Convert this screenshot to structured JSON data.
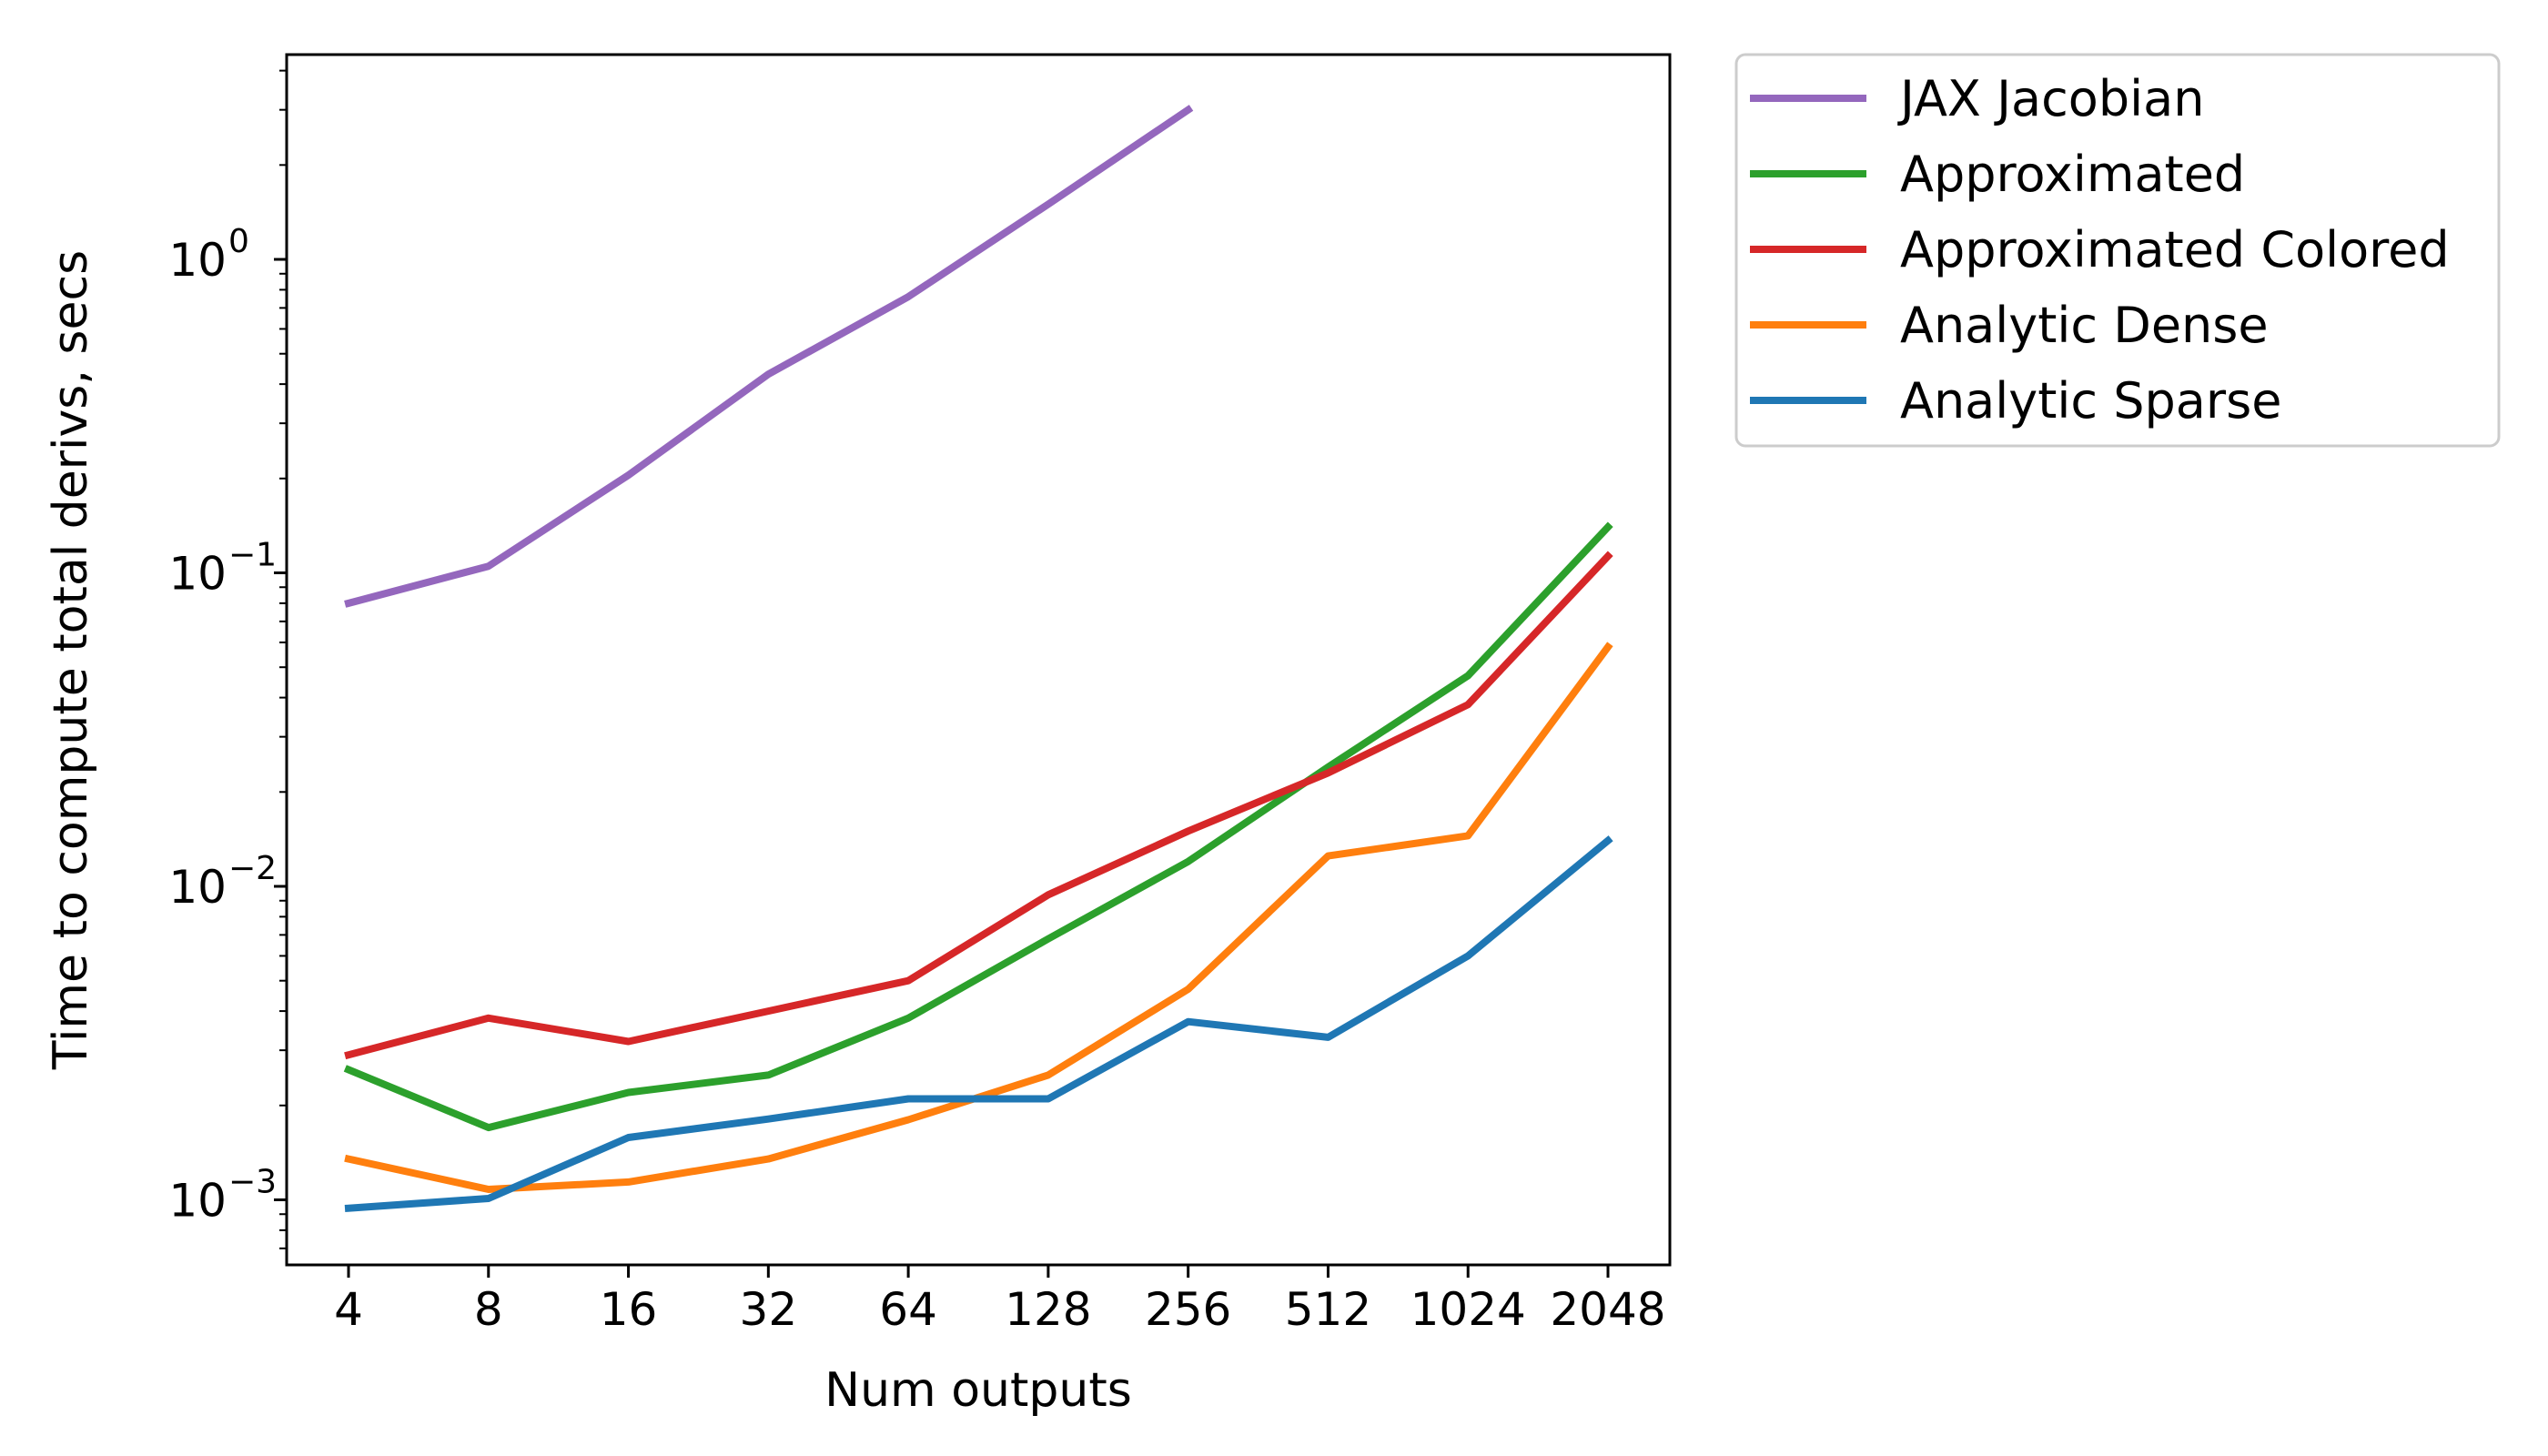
{
  "chart_data": {
    "type": "line",
    "title": "",
    "xlabel": "Num outputs",
    "ylabel": "Time to compute total derivs, secs",
    "yscale": "log",
    "ylim": [
      0.00062,
      4.5
    ],
    "grid": false,
    "legend_position": "outside-top-right",
    "categories": [
      "4",
      "8",
      "16",
      "32",
      "64",
      "128",
      "256",
      "512",
      "1024",
      "2048"
    ],
    "y_ticks": [
      {
        "value": 0.001,
        "base": "10",
        "exp": "−3"
      },
      {
        "value": 0.01,
        "base": "10",
        "exp": "−2"
      },
      {
        "value": 0.1,
        "base": "10",
        "exp": "−1"
      },
      {
        "value": 1,
        "base": "10",
        "exp": "0"
      }
    ],
    "series": [
      {
        "name": "JAX Jacobian",
        "color": "#9467bd",
        "values": [
          0.08,
          0.105,
          0.205,
          0.43,
          0.76,
          1.5,
          3.0,
          null,
          null,
          null
        ]
      },
      {
        "name": "Approximated",
        "color": "#2ca02c",
        "values": [
          0.0026,
          0.0017,
          0.0022,
          0.0025,
          0.0038,
          0.0068,
          0.012,
          0.024,
          0.047,
          0.14
        ]
      },
      {
        "name": "Approximated Colored",
        "color": "#d62728",
        "values": [
          0.0029,
          0.0038,
          0.0032,
          0.004,
          0.005,
          0.0094,
          0.015,
          0.023,
          0.038,
          0.113
        ]
      },
      {
        "name": "Analytic Dense",
        "color": "#ff7f0e",
        "values": [
          0.00135,
          0.00108,
          0.00114,
          0.00135,
          0.0018,
          0.0025,
          0.0047,
          0.0125,
          0.0145,
          0.058
        ]
      },
      {
        "name": "Analytic Sparse",
        "color": "#1f77b4",
        "values": [
          0.00094,
          0.00101,
          0.00158,
          0.00181,
          0.0021,
          0.0021,
          0.0037,
          0.0033,
          0.006,
          0.014
        ]
      }
    ]
  }
}
